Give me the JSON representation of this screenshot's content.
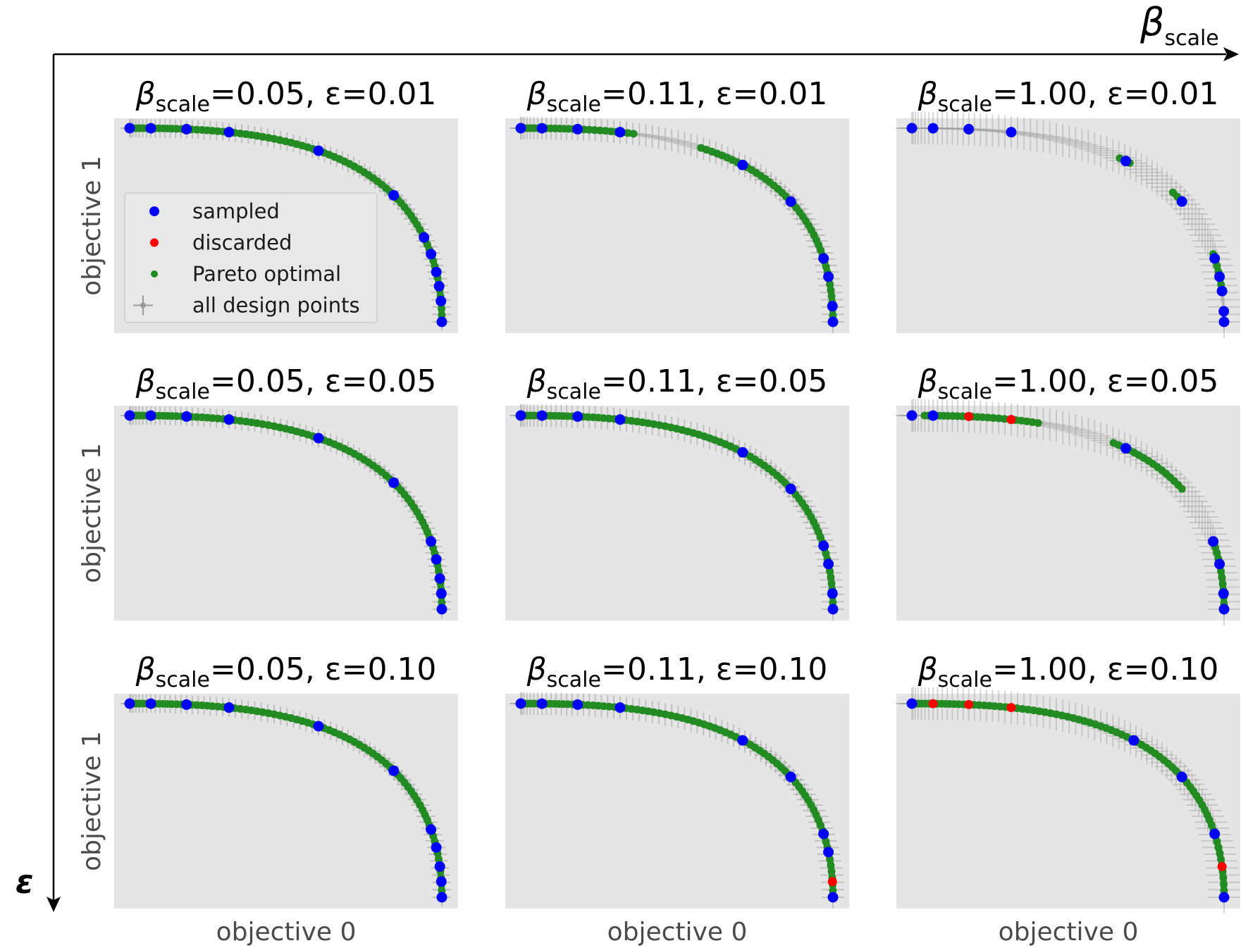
{
  "figure": {
    "top_axis_symbol": "β",
    "top_axis_subscript": "scale",
    "left_axis_symbol": "ε",
    "colors": {
      "sampled": "#0000ff",
      "discarded": "#ff0000",
      "pareto": "#228b22",
      "design_points": "#9a9a9a",
      "panel_bg": "#e5e5e5"
    }
  },
  "legend": {
    "placement": "inside-left of top-left panel",
    "entries": [
      {
        "label": "sampled",
        "color": "#0000ff",
        "marker": "dot-large"
      },
      {
        "label": "discarded",
        "color": "#ff0000",
        "marker": "dot"
      },
      {
        "label": "Pareto optimal",
        "color": "#228b22",
        "marker": "dot-small"
      },
      {
        "label": "all design points",
        "color": "#9a9a9a",
        "marker": "errorbar"
      }
    ]
  },
  "chart_data": [
    {
      "type": "scatter",
      "row": 0,
      "col": 0,
      "title_pre": "β",
      "title_sub": "scale",
      "title_post": "=0.05, ε=0.01",
      "xlabel": "",
      "ylabel": "objective 1",
      "sampled_t": [
        0.0,
        0.1,
        0.2,
        0.3,
        0.5,
        0.7,
        0.82,
        0.86,
        0.9,
        0.93,
        0.96,
        1.0
      ],
      "discarded_t": [],
      "pareto_ranges": [
        [
          0.0,
          1.0
        ]
      ],
      "spread": 0.3,
      "show_legend": true
    },
    {
      "type": "scatter",
      "row": 0,
      "col": 1,
      "title_pre": "β",
      "title_sub": "scale",
      "title_post": "=0.11, ε=0.01",
      "xlabel": "",
      "ylabel": "",
      "sampled_t": [
        0.0,
        0.1,
        0.2,
        0.3,
        0.58,
        0.72,
        0.87,
        0.91,
        0.97,
        1.0
      ],
      "discarded_t": [],
      "pareto_ranges": [
        [
          0.0,
          0.33
        ],
        [
          0.48,
          1.0
        ]
      ],
      "spread": 0.5,
      "show_legend": false
    },
    {
      "type": "scatter",
      "row": 0,
      "col": 2,
      "title_pre": "β",
      "title_sub": "scale",
      "title_post": "=1.00, ε=0.01",
      "xlabel": "",
      "ylabel": "",
      "sampled_t": [
        0.0,
        0.1,
        0.2,
        0.3,
        0.56,
        0.72,
        0.87,
        0.91,
        0.94,
        0.98,
        1.0
      ],
      "discarded_t": [],
      "pareto_ranges": [
        [
          0.545,
          0.57
        ],
        [
          0.69,
          0.72
        ],
        [
          0.86,
          0.94
        ]
      ],
      "spread": 1.0,
      "show_legend": false
    },
    {
      "type": "scatter",
      "row": 1,
      "col": 0,
      "title_pre": "β",
      "title_sub": "scale",
      "title_post": "=0.05, ε=0.05",
      "xlabel": "",
      "ylabel": "objective 1",
      "sampled_t": [
        0.0,
        0.1,
        0.2,
        0.3,
        0.5,
        0.7,
        0.86,
        0.9,
        0.94,
        0.97,
        1.0
      ],
      "discarded_t": [],
      "pareto_ranges": [
        [
          0.0,
          1.0
        ]
      ],
      "spread": 0.3,
      "show_legend": false
    },
    {
      "type": "scatter",
      "row": 1,
      "col": 1,
      "title_pre": "β",
      "title_sub": "scale",
      "title_post": "=0.11, ε=0.05",
      "xlabel": "",
      "ylabel": "",
      "sampled_t": [
        0.0,
        0.1,
        0.2,
        0.3,
        0.58,
        0.72,
        0.87,
        0.91,
        0.97,
        1.0
      ],
      "discarded_t": [],
      "pareto_ranges": [
        [
          0.0,
          1.0
        ]
      ],
      "spread": 0.5,
      "show_legend": false
    },
    {
      "type": "scatter",
      "row": 1,
      "col": 2,
      "title_pre": "β",
      "title_sub": "scale",
      "title_post": "=1.00, ε=0.05",
      "xlabel": "",
      "ylabel": "",
      "sampled_t": [
        0.0,
        0.1,
        0.56,
        0.86,
        0.91,
        0.97,
        1.0
      ],
      "discarded_t": [
        0.2,
        0.3
      ],
      "pareto_ranges": [
        [
          0.0,
          0.015
        ],
        [
          0.07,
          0.36
        ],
        [
          0.53,
          0.72
        ],
        [
          0.86,
          0.99
        ]
      ],
      "spread": 1.0,
      "show_legend": false
    },
    {
      "type": "scatter",
      "row": 2,
      "col": 0,
      "title_pre": "β",
      "title_sub": "scale",
      "title_post": "=0.05, ε=0.10",
      "xlabel": "objective 0",
      "ylabel": "objective 1",
      "sampled_t": [
        0.0,
        0.1,
        0.2,
        0.3,
        0.5,
        0.7,
        0.86,
        0.9,
        0.94,
        0.97,
        1.0
      ],
      "discarded_t": [],
      "pareto_ranges": [
        [
          0.0,
          1.0
        ]
      ],
      "spread": 0.3,
      "show_legend": false
    },
    {
      "type": "scatter",
      "row": 2,
      "col": 1,
      "title_pre": "β",
      "title_sub": "scale",
      "title_post": "=0.11, ε=0.10",
      "xlabel": "objective 0",
      "ylabel": "",
      "sampled_t": [
        0.0,
        0.1,
        0.2,
        0.3,
        0.58,
        0.72,
        0.87,
        0.91,
        1.0
      ],
      "discarded_t": [
        0.97
      ],
      "pareto_ranges": [
        [
          0.0,
          1.0
        ]
      ],
      "spread": 0.5,
      "show_legend": false
    },
    {
      "type": "scatter",
      "row": 2,
      "col": 2,
      "title_pre": "β",
      "title_sub": "scale",
      "title_post": "=1.00, ε=0.10",
      "xlabel": "objective 0",
      "ylabel": "",
      "sampled_t": [
        0.0,
        0.58,
        0.72,
        0.87,
        1.0
      ],
      "discarded_t": [
        0.1,
        0.2,
        0.3,
        0.94
      ],
      "pareto_ranges": [
        [
          0.0,
          1.0
        ]
      ],
      "spread": 1.0,
      "show_legend": false
    }
  ]
}
